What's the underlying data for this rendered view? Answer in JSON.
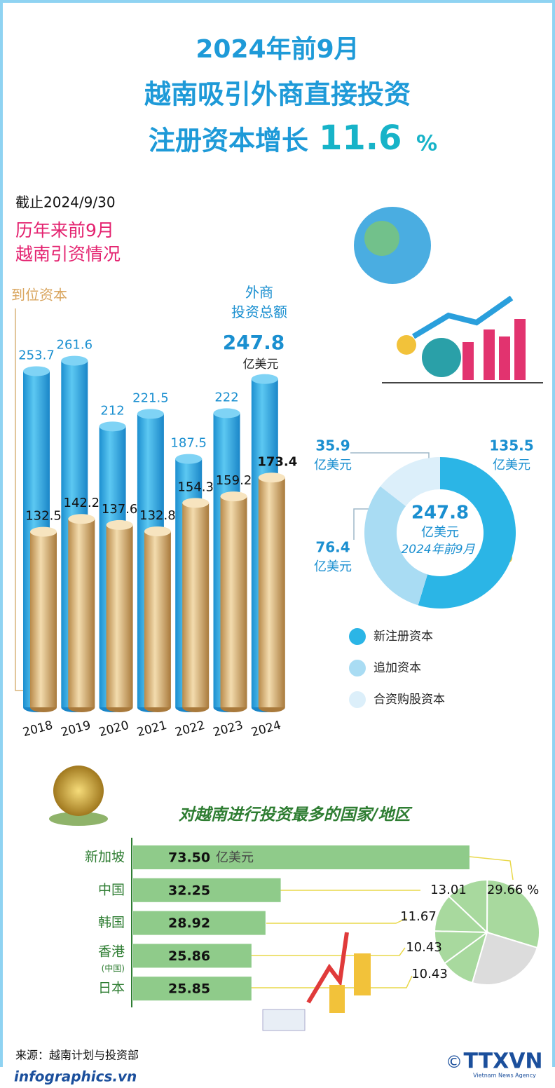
{
  "header": {
    "title_line1": "2024年前9月",
    "title_line2": "越南吸引外商直接投资",
    "title_line3": "注册资本增长",
    "growth": 11.6,
    "growth_unit": "%",
    "as_of": "截止2024/9/30"
  },
  "chart_data": [
    {
      "type": "bar",
      "title": "历年来前9月\n越南引资情况",
      "categories": [
        "2018",
        "2019",
        "2020",
        "2021",
        "2022",
        "2023",
        "2024"
      ],
      "unit": "亿美元",
      "series": [
        {
          "name": "外商\n投资总额",
          "color": "#2aa9e2",
          "values": [
            253.7,
            261.6,
            212,
            221.5,
            187.5,
            222,
            247.8
          ]
        },
        {
          "name": "到位资本",
          "color": "#d9b47a",
          "values": [
            132.5,
            142.2,
            137.6,
            132.8,
            154.3,
            159.2,
            173.4
          ]
        }
      ]
    },
    {
      "type": "donut",
      "categories": [
        "新注册资本",
        "追加资本",
        "合资购股资本"
      ],
      "values": [
        135.5,
        76.4,
        35.9
      ],
      "colors": [
        "#2bb5e6",
        "#a9dcf3",
        "#dcEFfa"
      ],
      "unit": "亿美元",
      "total": 247.8,
      "center_label": "2024年前9月"
    },
    {
      "type": "hbar",
      "title": "对越南进行投资最多的国家/地区",
      "categories": [
        "新加坡",
        "中国",
        "韩国",
        "香港\n(中国)",
        "日本"
      ],
      "values": [
        73.5,
        32.25,
        28.92,
        25.86,
        25.85
      ],
      "value_labels": [
        "73.50",
        "32.25",
        "28.92",
        "25.86",
        "25.85"
      ],
      "unit": "亿美元",
      "color": "#8fcb8a"
    },
    {
      "type": "pie",
      "values": [
        29.66,
        13.01,
        11.67,
        10.43,
        10.43,
        24.8
      ],
      "value_labels": [
        "29.66 %",
        "13.01",
        "11.67",
        "10.43",
        "10.43",
        null
      ],
      "colors": [
        "#a8d99e",
        "#a8d99e",
        "#a8d99e",
        "#a8d99e",
        "#a8d99e",
        "#dcdcdc"
      ]
    }
  ],
  "footer": {
    "source": "来源：越南计划与投资部",
    "site": "infographics.vn",
    "copyright": "©",
    "logo": "TTXVN",
    "agency": "Vietnam News Agency"
  }
}
